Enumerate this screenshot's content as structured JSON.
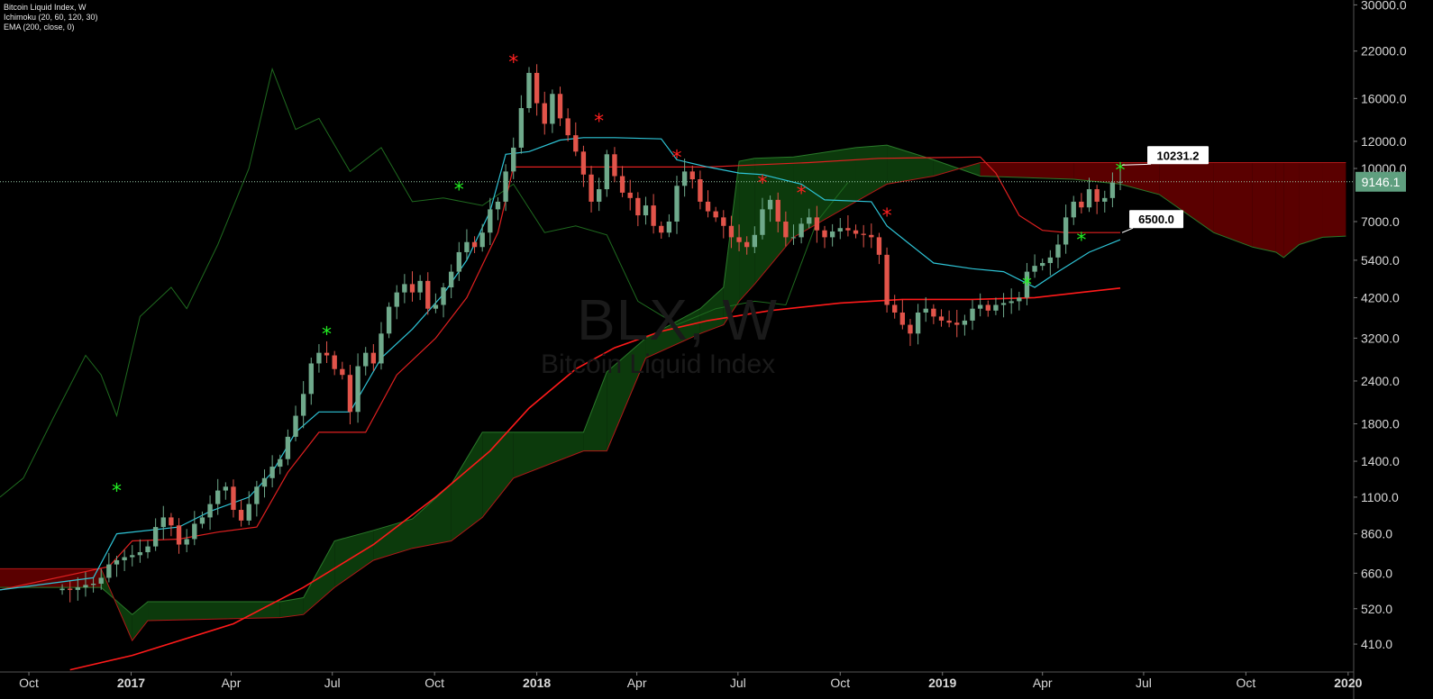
{
  "legend": {
    "title": "Bitcoin Liquid Index, W",
    "ichimoku": "Ichimoku (20, 60, 120, 30)",
    "ema": "EMA (200, close, 0)"
  },
  "watermark": {
    "symbol": "BLX, W",
    "name": "Bitcoin Liquid Index"
  },
  "colors": {
    "background": "#000000",
    "up_candle": "#6fa98b",
    "down_candle": "#e2544a",
    "tenkan": "#2ec4d6",
    "kijun": "#e02020",
    "ema": "#ff1a1a",
    "chikou": "#1f6b1f",
    "cloud_bull": "#0c3a0c",
    "cloud_bear": "#5a0000",
    "price_badge": "#5f9f7f",
    "sell_marker": "#ff2020",
    "buy_marker": "#22ee22"
  },
  "chart_data": {
    "type": "candlestick",
    "scale": "log",
    "ylim": [
      340,
      31000
    ],
    "y_ticks": [
      "30000.0",
      "22000.0",
      "16000.0",
      "12000.0",
      "10000.0",
      "7000.0",
      "5400.0",
      "4200.0",
      "3200.0",
      "2400.0",
      "1800.0",
      "1400.0",
      "1100.0",
      "860.0",
      "660.0",
      "520.0",
      "410.0"
    ],
    "x_ticks": [
      {
        "label": "Oct",
        "date": "2016-10-01",
        "bold": false
      },
      {
        "label": "2017",
        "date": "2017-01-01",
        "bold": true
      },
      {
        "label": "Apr",
        "date": "2017-04-01",
        "bold": false
      },
      {
        "label": "Jul",
        "date": "2017-07-01",
        "bold": false
      },
      {
        "label": "Oct",
        "date": "2017-10-01",
        "bold": false
      },
      {
        "label": "2018",
        "date": "2018-01-01",
        "bold": true
      },
      {
        "label": "Apr",
        "date": "2018-04-01",
        "bold": false
      },
      {
        "label": "Jul",
        "date": "2018-07-01",
        "bold": false
      },
      {
        "label": "Oct",
        "date": "2018-10-01",
        "bold": false
      },
      {
        "label": "2019",
        "date": "2019-01-01",
        "bold": true
      },
      {
        "label": "Apr",
        "date": "2019-04-01",
        "bold": false
      },
      {
        "label": "Jul",
        "date": "2019-07-01",
        "bold": false
      },
      {
        "label": "Oct",
        "date": "2019-10-01",
        "bold": false
      },
      {
        "label": "2020",
        "date": "2020-01-01",
        "bold": true
      }
    ],
    "xlim": [
      "2016-09-05",
      "2020-01-06"
    ],
    "last_date": "2019-06-10",
    "closes": [
      595,
      590,
      600,
      610,
      615,
      640,
      700,
      720,
      735,
      745,
      760,
      790,
      900,
      960,
      910,
      800,
      830,
      920,
      960,
      1050,
      1150,
      1180,
      1010,
      940,
      1050,
      1180,
      1250,
      1350,
      1420,
      1650,
      1900,
      2200,
      2700,
      2900,
      2850,
      2600,
      2500,
      1950,
      2650,
      2900,
      2700,
      3300,
      3950,
      4350,
      4600,
      4350,
      4700,
      3900,
      4000,
      4500,
      5000,
      5700,
      6100,
      5900,
      6500,
      7600,
      8000,
      9800,
      11500,
      15000,
      19000,
      15500,
      13500,
      16500,
      14000,
      12500,
      11200,
      9600,
      8000,
      8700,
      11000,
      9500,
      8500,
      8200,
      7300,
      7800,
      6800,
      6500,
      7000,
      8900,
      9800,
      9300,
      8000,
      7500,
      7200,
      6800,
      6300,
      6100,
      5900,
      6400,
      7600,
      8100,
      7000,
      6300,
      6300,
      6900,
      7200,
      6600,
      6300,
      6550,
      6700,
      6600,
      6450,
      6400,
      6300,
      5600,
      4000,
      3800,
      3500,
      3300,
      3800,
      3900,
      3700,
      3600,
      3550,
      3500,
      3600,
      3900,
      4000,
      3850,
      4000,
      4050,
      4100,
      4200,
      5000,
      5200,
      5300,
      5500,
      6000,
      7200,
      8000,
      7700,
      8700,
      8000,
      8200,
      9100,
      9146.1
    ],
    "marks": [
      {
        "date": "2016-12-19",
        "value": 1150,
        "type": "buy"
      },
      {
        "date": "2017-06-26",
        "value": 3300,
        "type": "buy"
      },
      {
        "date": "2017-10-23",
        "value": 8700,
        "type": "buy"
      },
      {
        "date": "2017-12-11",
        "value": 20500,
        "type": "sell"
      },
      {
        "date": "2018-02-26",
        "value": 13800,
        "type": "sell"
      },
      {
        "date": "2018-05-07",
        "value": 10800,
        "type": "sell"
      },
      {
        "date": "2018-07-23",
        "value": 9100,
        "type": "sell"
      },
      {
        "date": "2018-08-27",
        "value": 8500,
        "type": "sell"
      },
      {
        "date": "2018-11-12",
        "value": 7300,
        "type": "sell"
      },
      {
        "date": "2019-03-18",
        "value": 4600,
        "type": "buy"
      },
      {
        "date": "2019-05-06",
        "value": 6200,
        "type": "buy"
      },
      {
        "date": "2019-06-10",
        "value": 9900,
        "type": "buy"
      }
    ],
    "price_line": 9146.1,
    "labels": {
      "current_price": "9146.1",
      "callout_upper": "10231.2",
      "callout_lower": "6500.0"
    },
    "callouts": [
      {
        "key": "callout_upper",
        "value": 10231.2,
        "date": "2019-06-10"
      },
      {
        "key": "callout_lower",
        "value": 6500.0,
        "date": "2019-06-10"
      }
    ],
    "ichimoku": {
      "tenkan": [
        {
          "date": "2016-09-05",
          "v": 590
        },
        {
          "date": "2016-11-28",
          "v": 640
        },
        {
          "date": "2016-12-19",
          "v": 860
        },
        {
          "date": "2017-02-13",
          "v": 900
        },
        {
          "date": "2017-03-13",
          "v": 1000
        },
        {
          "date": "2017-04-17",
          "v": 1100
        },
        {
          "date": "2017-05-08",
          "v": 1300
        },
        {
          "date": "2017-05-29",
          "v": 1700
        },
        {
          "date": "2017-06-19",
          "v": 1950
        },
        {
          "date": "2017-07-17",
          "v": 1950
        },
        {
          "date": "2017-08-14",
          "v": 2800
        },
        {
          "date": "2017-09-11",
          "v": 3400
        },
        {
          "date": "2017-10-09",
          "v": 4300
        },
        {
          "date": "2017-10-30",
          "v": 5400
        },
        {
          "date": "2017-11-20",
          "v": 7500
        },
        {
          "date": "2017-12-04",
          "v": 11000
        },
        {
          "date": "2017-12-25",
          "v": 11200
        },
        {
          "date": "2018-01-22",
          "v": 12100
        },
        {
          "date": "2018-02-12",
          "v": 12300
        },
        {
          "date": "2018-03-12",
          "v": 12300
        },
        {
          "date": "2018-04-23",
          "v": 12200
        },
        {
          "date": "2018-05-07",
          "v": 10600
        },
        {
          "date": "2018-06-04",
          "v": 10100
        },
        {
          "date": "2018-07-02",
          "v": 9700
        },
        {
          "date": "2018-07-23",
          "v": 9600
        },
        {
          "date": "2018-08-27",
          "v": 9000
        },
        {
          "date": "2018-09-17",
          "v": 8100
        },
        {
          "date": "2018-10-29",
          "v": 8000
        },
        {
          "date": "2018-11-12",
          "v": 6800
        },
        {
          "date": "2018-12-03",
          "v": 6000
        },
        {
          "date": "2018-12-24",
          "v": 5300
        },
        {
          "date": "2019-01-28",
          "v": 5100
        },
        {
          "date": "2019-02-25",
          "v": 5000
        },
        {
          "date": "2019-03-25",
          "v": 4500
        },
        {
          "date": "2019-04-15",
          "v": 5000
        },
        {
          "date": "2019-05-13",
          "v": 5700
        },
        {
          "date": "2019-06-10",
          "v": 6200
        }
      ],
      "kijun": [
        {
          "date": "2016-09-05",
          "v": 590
        },
        {
          "date": "2016-12-12",
          "v": 690
        },
        {
          "date": "2017-01-02",
          "v": 820
        },
        {
          "date": "2017-02-13",
          "v": 830
        },
        {
          "date": "2017-03-20",
          "v": 870
        },
        {
          "date": "2017-04-24",
          "v": 900
        },
        {
          "date": "2017-05-22",
          "v": 1300
        },
        {
          "date": "2017-06-19",
          "v": 1700
        },
        {
          "date": "2017-07-31",
          "v": 1700
        },
        {
          "date": "2017-08-28",
          "v": 2500
        },
        {
          "date": "2017-10-02",
          "v": 3200
        },
        {
          "date": "2017-10-30",
          "v": 4200
        },
        {
          "date": "2017-11-27",
          "v": 6500
        },
        {
          "date": "2017-12-11",
          "v": 10100
        },
        {
          "date": "2018-06-04",
          "v": 10100
        },
        {
          "date": "2018-07-02",
          "v": 10200
        },
        {
          "date": "2018-09-03",
          "v": 10400
        },
        {
          "date": "2018-11-05",
          "v": 10700
        },
        {
          "date": "2019-02-04",
          "v": 10800
        },
        {
          "date": "2019-02-18",
          "v": 9700
        },
        {
          "date": "2019-03-11",
          "v": 7300
        },
        {
          "date": "2019-04-01",
          "v": 6600
        },
        {
          "date": "2019-04-22",
          "v": 6500
        },
        {
          "date": "2019-06-10",
          "v": 6500
        }
      ],
      "chikou": [
        {
          "date": "2016-09-05",
          "v": 1100
        },
        {
          "date": "2016-09-26",
          "v": 1250
        },
        {
          "date": "2016-10-24",
          "v": 1900
        },
        {
          "date": "2016-11-21",
          "v": 2850
        },
        {
          "date": "2016-12-05",
          "v": 2500
        },
        {
          "date": "2016-12-19",
          "v": 1900
        },
        {
          "date": "2017-01-09",
          "v": 3700
        },
        {
          "date": "2017-02-06",
          "v": 4500
        },
        {
          "date": "2017-02-20",
          "v": 3900
        },
        {
          "date": "2017-03-20",
          "v": 6000
        },
        {
          "date": "2017-04-17",
          "v": 10000
        },
        {
          "date": "2017-05-08",
          "v": 19500
        },
        {
          "date": "2017-05-29",
          "v": 13000
        },
        {
          "date": "2017-06-19",
          "v": 14000
        },
        {
          "date": "2017-07-17",
          "v": 9800
        },
        {
          "date": "2017-08-14",
          "v": 11500
        },
        {
          "date": "2017-09-11",
          "v": 8000
        },
        {
          "date": "2017-10-09",
          "v": 8200
        },
        {
          "date": "2017-11-13",
          "v": 7800
        },
        {
          "date": "2017-12-11",
          "v": 9000
        },
        {
          "date": "2018-01-08",
          "v": 6500
        },
        {
          "date": "2018-02-05",
          "v": 6800
        },
        {
          "date": "2018-03-05",
          "v": 6400
        },
        {
          "date": "2018-04-02",
          "v": 4100
        },
        {
          "date": "2018-05-07",
          "v": 3500
        },
        {
          "date": "2018-06-11",
          "v": 3900
        },
        {
          "date": "2018-07-16",
          "v": 4100
        },
        {
          "date": "2018-08-13",
          "v": 4000
        },
        {
          "date": "2018-09-10",
          "v": 7000
        },
        {
          "date": "2018-10-08",
          "v": 9100
        }
      ],
      "cloud": [
        {
          "date": "2016-09-05",
          "a": 600,
          "b": 680
        },
        {
          "date": "2016-12-05",
          "a": 600,
          "b": 680
        },
        {
          "date": "2017-01-02",
          "a": 500,
          "b": 420
        },
        {
          "date": "2017-01-16",
          "a": 545,
          "b": 480
        },
        {
          "date": "2017-05-15",
          "a": 545,
          "b": 490
        },
        {
          "date": "2017-06-05",
          "a": 560,
          "b": 500
        },
        {
          "date": "2017-07-03",
          "a": 820,
          "b": 600
        },
        {
          "date": "2017-08-07",
          "a": 880,
          "b": 720
        },
        {
          "date": "2017-09-11",
          "a": 950,
          "b": 780
        },
        {
          "date": "2017-10-16",
          "a": 1200,
          "b": 820
        },
        {
          "date": "2017-11-13",
          "a": 1700,
          "b": 960
        },
        {
          "date": "2017-12-11",
          "a": 1700,
          "b": 1250
        },
        {
          "date": "2018-02-12",
          "a": 1700,
          "b": 1500
        },
        {
          "date": "2018-03-05",
          "a": 2550,
          "b": 1500
        },
        {
          "date": "2018-04-09",
          "a": 3200,
          "b": 2800
        },
        {
          "date": "2018-05-28",
          "a": 3900,
          "b": 3300
        },
        {
          "date": "2018-06-18",
          "a": 4500,
          "b": 3500
        },
        {
          "date": "2018-07-02",
          "a": 10500,
          "b": 4100
        },
        {
          "date": "2018-07-16",
          "a": 10700,
          "b": 4600
        },
        {
          "date": "2018-08-20",
          "a": 10800,
          "b": 6300
        },
        {
          "date": "2018-10-15",
          "a": 11500,
          "b": 8000
        },
        {
          "date": "2018-11-12",
          "a": 11700,
          "b": 9000
        },
        {
          "date": "2018-12-24",
          "a": 10600,
          "b": 9500
        },
        {
          "date": "2019-02-04",
          "a": 9500,
          "b": 10400
        },
        {
          "date": "2019-04-29",
          "a": 9300,
          "b": 10400
        },
        {
          "date": "2019-06-10",
          "a": 9000,
          "b": 10400
        },
        {
          "date": "2019-07-15",
          "a": 8400,
          "b": 10400
        },
        {
          "date": "2019-09-02",
          "a": 6500,
          "b": 10400
        },
        {
          "date": "2019-10-07",
          "a": 5900,
          "b": 10400
        },
        {
          "date": "2019-10-28",
          "a": 5700,
          "b": 10400
        },
        {
          "date": "2019-11-04",
          "a": 5500,
          "b": 10400
        },
        {
          "date": "2019-11-18",
          "a": 6000,
          "b": 10400
        },
        {
          "date": "2019-12-09",
          "a": 6300,
          "b": 10400
        },
        {
          "date": "2019-12-30",
          "a": 6350,
          "b": 10400
        }
      ]
    },
    "ema": [
      {
        "date": "2016-11-07",
        "v": 345
      },
      {
        "date": "2017-01-02",
        "v": 380
      },
      {
        "date": "2017-04-03",
        "v": 470
      },
      {
        "date": "2017-06-05",
        "v": 600
      },
      {
        "date": "2017-08-07",
        "v": 800
      },
      {
        "date": "2017-10-02",
        "v": 1100
      },
      {
        "date": "2017-11-20",
        "v": 1500
      },
      {
        "date": "2017-12-25",
        "v": 2000
      },
      {
        "date": "2018-02-05",
        "v": 2600
      },
      {
        "date": "2018-03-12",
        "v": 3000
      },
      {
        "date": "2018-04-23",
        "v": 3350
      },
      {
        "date": "2018-06-04",
        "v": 3600
      },
      {
        "date": "2018-07-30",
        "v": 3850
      },
      {
        "date": "2018-10-01",
        "v": 4050
      },
      {
        "date": "2018-11-26",
        "v": 4150
      },
      {
        "date": "2019-01-28",
        "v": 4150
      },
      {
        "date": "2019-03-25",
        "v": 4200
      },
      {
        "date": "2019-05-06",
        "v": 4350
      },
      {
        "date": "2019-06-10",
        "v": 4480
      }
    ]
  }
}
